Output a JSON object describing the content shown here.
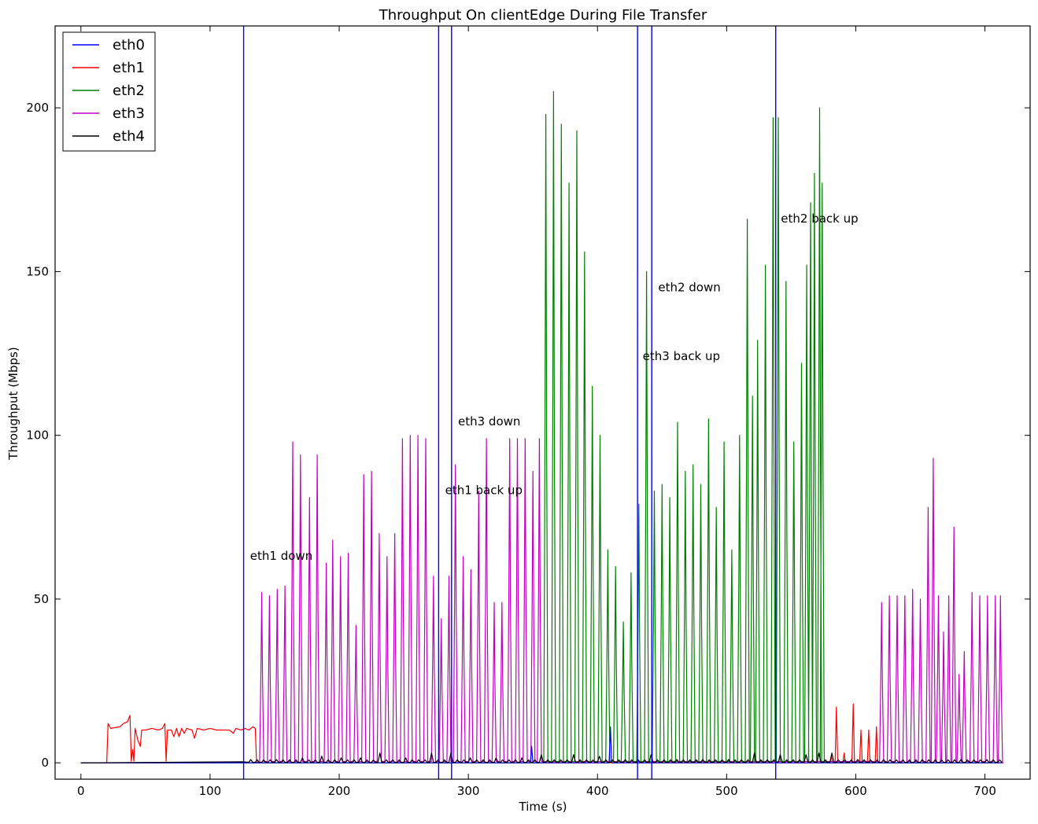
{
  "chart_data": {
    "type": "line",
    "title": "Throughput On clientEdge During File Transfer",
    "xlabel": "Time (s)",
    "ylabel": "Throughput (Mbps)",
    "xlim": [
      -20,
      735
    ],
    "ylim": [
      -5,
      225
    ],
    "xticks": [
      0,
      100,
      200,
      300,
      400,
      500,
      600,
      700
    ],
    "yticks": [
      0,
      50,
      100,
      150,
      200
    ],
    "legend_position": "upper-left",
    "grid": false,
    "series": [
      {
        "name": "eth0",
        "color": "#0000ff",
        "points": [
          [
            0,
            0
          ],
          [
            348,
            0
          ],
          [
            349,
            5
          ],
          [
            350,
            0
          ],
          [
            409,
            0
          ],
          [
            410,
            11
          ],
          [
            411,
            0
          ],
          [
            713,
            0
          ]
        ]
      },
      {
        "name": "eth1",
        "color": "#ff0000",
        "points": [
          [
            0,
            0
          ],
          [
            20,
            0
          ],
          [
            21,
            12
          ],
          [
            23,
            10.5
          ],
          [
            30,
            11
          ],
          [
            33,
            12
          ],
          [
            36,
            12.5
          ],
          [
            38,
            14.5
          ],
          [
            39,
            0.5
          ],
          [
            40,
            4
          ],
          [
            41,
            0.5
          ],
          [
            42,
            10.5
          ],
          [
            44,
            7
          ],
          [
            46,
            5
          ],
          [
            47,
            10
          ],
          [
            50,
            10
          ],
          [
            55,
            10.5
          ],
          [
            60,
            10
          ],
          [
            63,
            10.5
          ],
          [
            65,
            12
          ],
          [
            66,
            0.5
          ],
          [
            67,
            10
          ],
          [
            70,
            10
          ],
          [
            72,
            8
          ],
          [
            74,
            10.5
          ],
          [
            76,
            8
          ],
          [
            78,
            10.5
          ],
          [
            80,
            9
          ],
          [
            82,
            10.5
          ],
          [
            86,
            10
          ],
          [
            88,
            7.5
          ],
          [
            90,
            10.5
          ],
          [
            95,
            10
          ],
          [
            100,
            10.5
          ],
          [
            105,
            10
          ],
          [
            110,
            10
          ],
          [
            115,
            10
          ],
          [
            118,
            9
          ],
          [
            120,
            10.5
          ],
          [
            124,
            10
          ],
          [
            127,
            10.5
          ],
          [
            130,
            10
          ],
          [
            133,
            11
          ],
          [
            135,
            10.5
          ],
          [
            136,
            0
          ],
          [
            580,
            0
          ],
          [
            581,
            2
          ],
          [
            582,
            0
          ],
          [
            584,
            0
          ],
          [
            585,
            17
          ],
          [
            586,
            0
          ],
          [
            590,
            0
          ],
          [
            591,
            3
          ],
          [
            592,
            0
          ],
          [
            597,
            0
          ],
          [
            598,
            18
          ],
          [
            599,
            0
          ],
          [
            603,
            0
          ],
          [
            604,
            10
          ],
          [
            605,
            0
          ],
          [
            609,
            0
          ],
          [
            610,
            10
          ],
          [
            611,
            0
          ],
          [
            615,
            0
          ],
          [
            616,
            11
          ],
          [
            617,
            0
          ],
          [
            713,
            0
          ]
        ]
      },
      {
        "name": "eth2",
        "color": "#008000",
        "peaks": [
          [
            360,
            198
          ],
          [
            366,
            205
          ],
          [
            372,
            195
          ],
          [
            378,
            177
          ],
          [
            384,
            193
          ],
          [
            390,
            156
          ],
          [
            396,
            115
          ],
          [
            402,
            100
          ],
          [
            408,
            65
          ],
          [
            414,
            60
          ],
          [
            420,
            43
          ],
          [
            426,
            58
          ],
          [
            432,
            79
          ],
          [
            438,
            150
          ],
          [
            444,
            83
          ],
          [
            450,
            85
          ],
          [
            456,
            81
          ],
          [
            462,
            104
          ],
          [
            468,
            89
          ],
          [
            474,
            91
          ],
          [
            480,
            85
          ],
          [
            486,
            105
          ],
          [
            492,
            78
          ],
          [
            498,
            98
          ],
          [
            504,
            65
          ],
          [
            510,
            100
          ],
          [
            516,
            166
          ],
          [
            520,
            112
          ],
          [
            524,
            129
          ],
          [
            530,
            152
          ],
          [
            536,
            197
          ],
          [
            540,
            197
          ],
          [
            546,
            147
          ],
          [
            552,
            98
          ],
          [
            558,
            122
          ],
          [
            562,
            152
          ],
          [
            565,
            171
          ],
          [
            568,
            180
          ],
          [
            572,
            200
          ],
          [
            574,
            177
          ]
        ],
        "range": [
          358,
          578
        ]
      },
      {
        "name": "eth3",
        "color": "#c000c0",
        "peaks": [
          [
            140,
            52
          ],
          [
            146,
            51
          ],
          [
            152,
            53
          ],
          [
            158,
            54
          ],
          [
            164,
            98
          ],
          [
            170,
            94
          ],
          [
            177,
            81
          ],
          [
            183,
            94
          ],
          [
            190,
            61
          ],
          [
            195,
            68
          ],
          [
            201,
            63
          ],
          [
            207,
            64
          ],
          [
            213,
            42
          ],
          [
            219,
            88
          ],
          [
            225,
            89
          ],
          [
            231,
            70
          ],
          [
            237,
            63
          ],
          [
            243,
            70
          ],
          [
            249,
            99
          ],
          [
            255,
            100
          ],
          [
            261,
            100
          ],
          [
            267,
            99
          ],
          [
            273,
            57
          ],
          [
            279,
            44
          ],
          [
            285,
            57
          ],
          [
            290,
            91
          ],
          [
            296,
            63
          ],
          [
            302,
            59
          ],
          [
            308,
            83
          ],
          [
            314,
            99
          ],
          [
            320,
            49
          ],
          [
            326,
            49
          ],
          [
            332,
            99
          ],
          [
            338,
            99
          ],
          [
            344,
            99
          ],
          [
            350,
            89
          ],
          [
            355,
            99
          ],
          [
            620,
            49
          ],
          [
            626,
            51
          ],
          [
            632,
            51
          ],
          [
            638,
            51
          ],
          [
            644,
            53
          ],
          [
            650,
            50
          ],
          [
            656,
            78
          ],
          [
            660,
            93
          ],
          [
            664,
            51
          ],
          [
            668,
            40
          ],
          [
            672,
            51
          ],
          [
            676,
            72
          ],
          [
            680,
            27
          ],
          [
            684,
            34
          ],
          [
            690,
            52
          ],
          [
            696,
            51
          ],
          [
            702,
            51
          ],
          [
            708,
            51
          ],
          [
            712,
            51
          ]
        ],
        "range": [
          135,
          714
        ]
      },
      {
        "name": "eth4",
        "color": "#000000",
        "baseline_bumps": [
          [
            130,
            1
          ],
          [
            150,
            1
          ],
          [
            170,
            1.5
          ],
          [
            185,
            2
          ],
          [
            200,
            1.5
          ],
          [
            215,
            1.5
          ],
          [
            230,
            3
          ],
          [
            250,
            1.5
          ],
          [
            268,
            3
          ],
          [
            283,
            3
          ],
          [
            300,
            1.5
          ],
          [
            320,
            1.5
          ],
          [
            340,
            1.5
          ],
          [
            355,
            2.5
          ],
          [
            380,
            2.5
          ],
          [
            400,
            2
          ],
          [
            420,
            1
          ],
          [
            440,
            2.5
          ],
          [
            460,
            1
          ],
          [
            480,
            1
          ],
          [
            500,
            1
          ],
          [
            520,
            3
          ],
          [
            540,
            2.5
          ],
          [
            560,
            2.5
          ],
          [
            570,
            3
          ],
          [
            578,
            3
          ],
          [
            600,
            1
          ],
          [
            620,
            1
          ],
          [
            650,
            1
          ],
          [
            680,
            1
          ],
          [
            700,
            1
          ]
        ],
        "range": [
          0,
          713
        ]
      }
    ],
    "vlines": {
      "color": "#0000ff",
      "x": [
        126,
        277,
        287,
        431,
        442,
        538
      ]
    },
    "annotations": [
      {
        "text": "eth1 down",
        "x": 131,
        "y": 62
      },
      {
        "text": "eth3 down",
        "x": 292,
        "y": 103
      },
      {
        "text": "eth1 back up",
        "x": 282,
        "y": 82
      },
      {
        "text": "eth3 back up",
        "x": 435,
        "y": 123
      },
      {
        "text": "eth2 down",
        "x": 447,
        "y": 144
      },
      {
        "text": "eth2 back up",
        "x": 542,
        "y": 165
      }
    ]
  }
}
